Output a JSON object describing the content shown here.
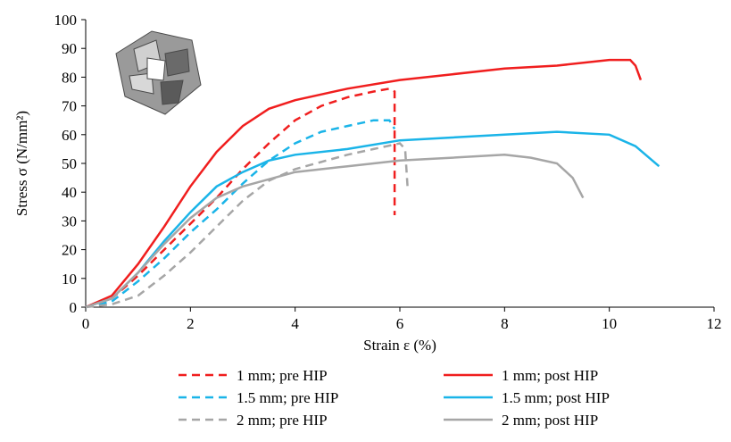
{
  "chart_data": {
    "type": "line",
    "x_label": "Strain ε (%)",
    "y_label": "Stress σ (N/mm²)",
    "xlim": [
      0,
      12
    ],
    "xticks": [
      0,
      2,
      4,
      6,
      8,
      10,
      12
    ],
    "ylim": [
      0,
      100
    ],
    "yticks": [
      0,
      10,
      20,
      30,
      40,
      50,
      60,
      70,
      80,
      90,
      100
    ],
    "grid": false,
    "legend": "bottom",
    "series": [
      {
        "name": "1 mm; pre HIP",
        "color": "#f01e1e",
        "dashed": true,
        "x": [
          0,
          0.5,
          1,
          1.5,
          2,
          2.5,
          3,
          3.5,
          4,
          4.5,
          5,
          5.5,
          5.8,
          5.9,
          5.9
        ],
        "values": [
          0,
          3,
          11,
          20,
          29,
          38,
          48,
          57,
          65,
          70,
          73,
          75,
          76,
          75,
          32
        ]
      },
      {
        "name": "1 mm; post HIP",
        "color": "#f01e1e",
        "dashed": false,
        "x": [
          0,
          0.5,
          1,
          1.5,
          2,
          2.5,
          3,
          3.5,
          4,
          5,
          6,
          7,
          8,
          9,
          10,
          10.4,
          10.5,
          10.6
        ],
        "values": [
          0,
          4,
          15,
          28,
          42,
          54,
          63,
          69,
          72,
          76,
          79,
          81,
          83,
          84,
          86,
          86,
          84,
          79
        ]
      },
      {
        "name": "1.5 mm; pre HIP",
        "color": "#1ab4e8",
        "dashed": true,
        "x": [
          0,
          0.5,
          1,
          1.5,
          2,
          2.5,
          3,
          3.5,
          4,
          4.5,
          5,
          5.5,
          5.8,
          5.9
        ],
        "values": [
          0,
          2,
          9,
          17,
          26,
          34,
          43,
          51,
          57,
          61,
          63,
          65,
          65,
          62
        ]
      },
      {
        "name": "1.5 mm; post HIP",
        "color": "#1ab4e8",
        "dashed": false,
        "x": [
          0,
          0.5,
          1,
          1.5,
          2,
          2.5,
          3,
          3.5,
          4,
          5,
          6,
          7,
          8,
          9,
          10,
          10.5,
          10.95
        ],
        "values": [
          0,
          3,
          12,
          23,
          33,
          42,
          47,
          51,
          53,
          55,
          58,
          59,
          60,
          61,
          60,
          56,
          49
        ]
      },
      {
        "name": "2 mm; pre HIP",
        "color": "#a6a6a6",
        "dashed": true,
        "x": [
          0,
          0.5,
          1,
          1.5,
          2,
          2.5,
          3,
          3.5,
          4,
          5,
          5.5,
          6,
          6.1,
          6.15
        ],
        "values": [
          0,
          1,
          4,
          11,
          19,
          28,
          37,
          44,
          48,
          53,
          55,
          57,
          55,
          41
        ]
      },
      {
        "name": "2 mm; post HIP",
        "color": "#a6a6a6",
        "dashed": false,
        "x": [
          0,
          0.5,
          1,
          1.5,
          2,
          2.5,
          3,
          4,
          5,
          6,
          7,
          8,
          8.5,
          9,
          9.3,
          9.5
        ],
        "values": [
          0,
          3,
          12,
          22,
          31,
          38,
          42,
          47,
          49,
          51,
          52,
          53,
          52,
          50,
          45,
          38
        ]
      }
    ]
  }
}
